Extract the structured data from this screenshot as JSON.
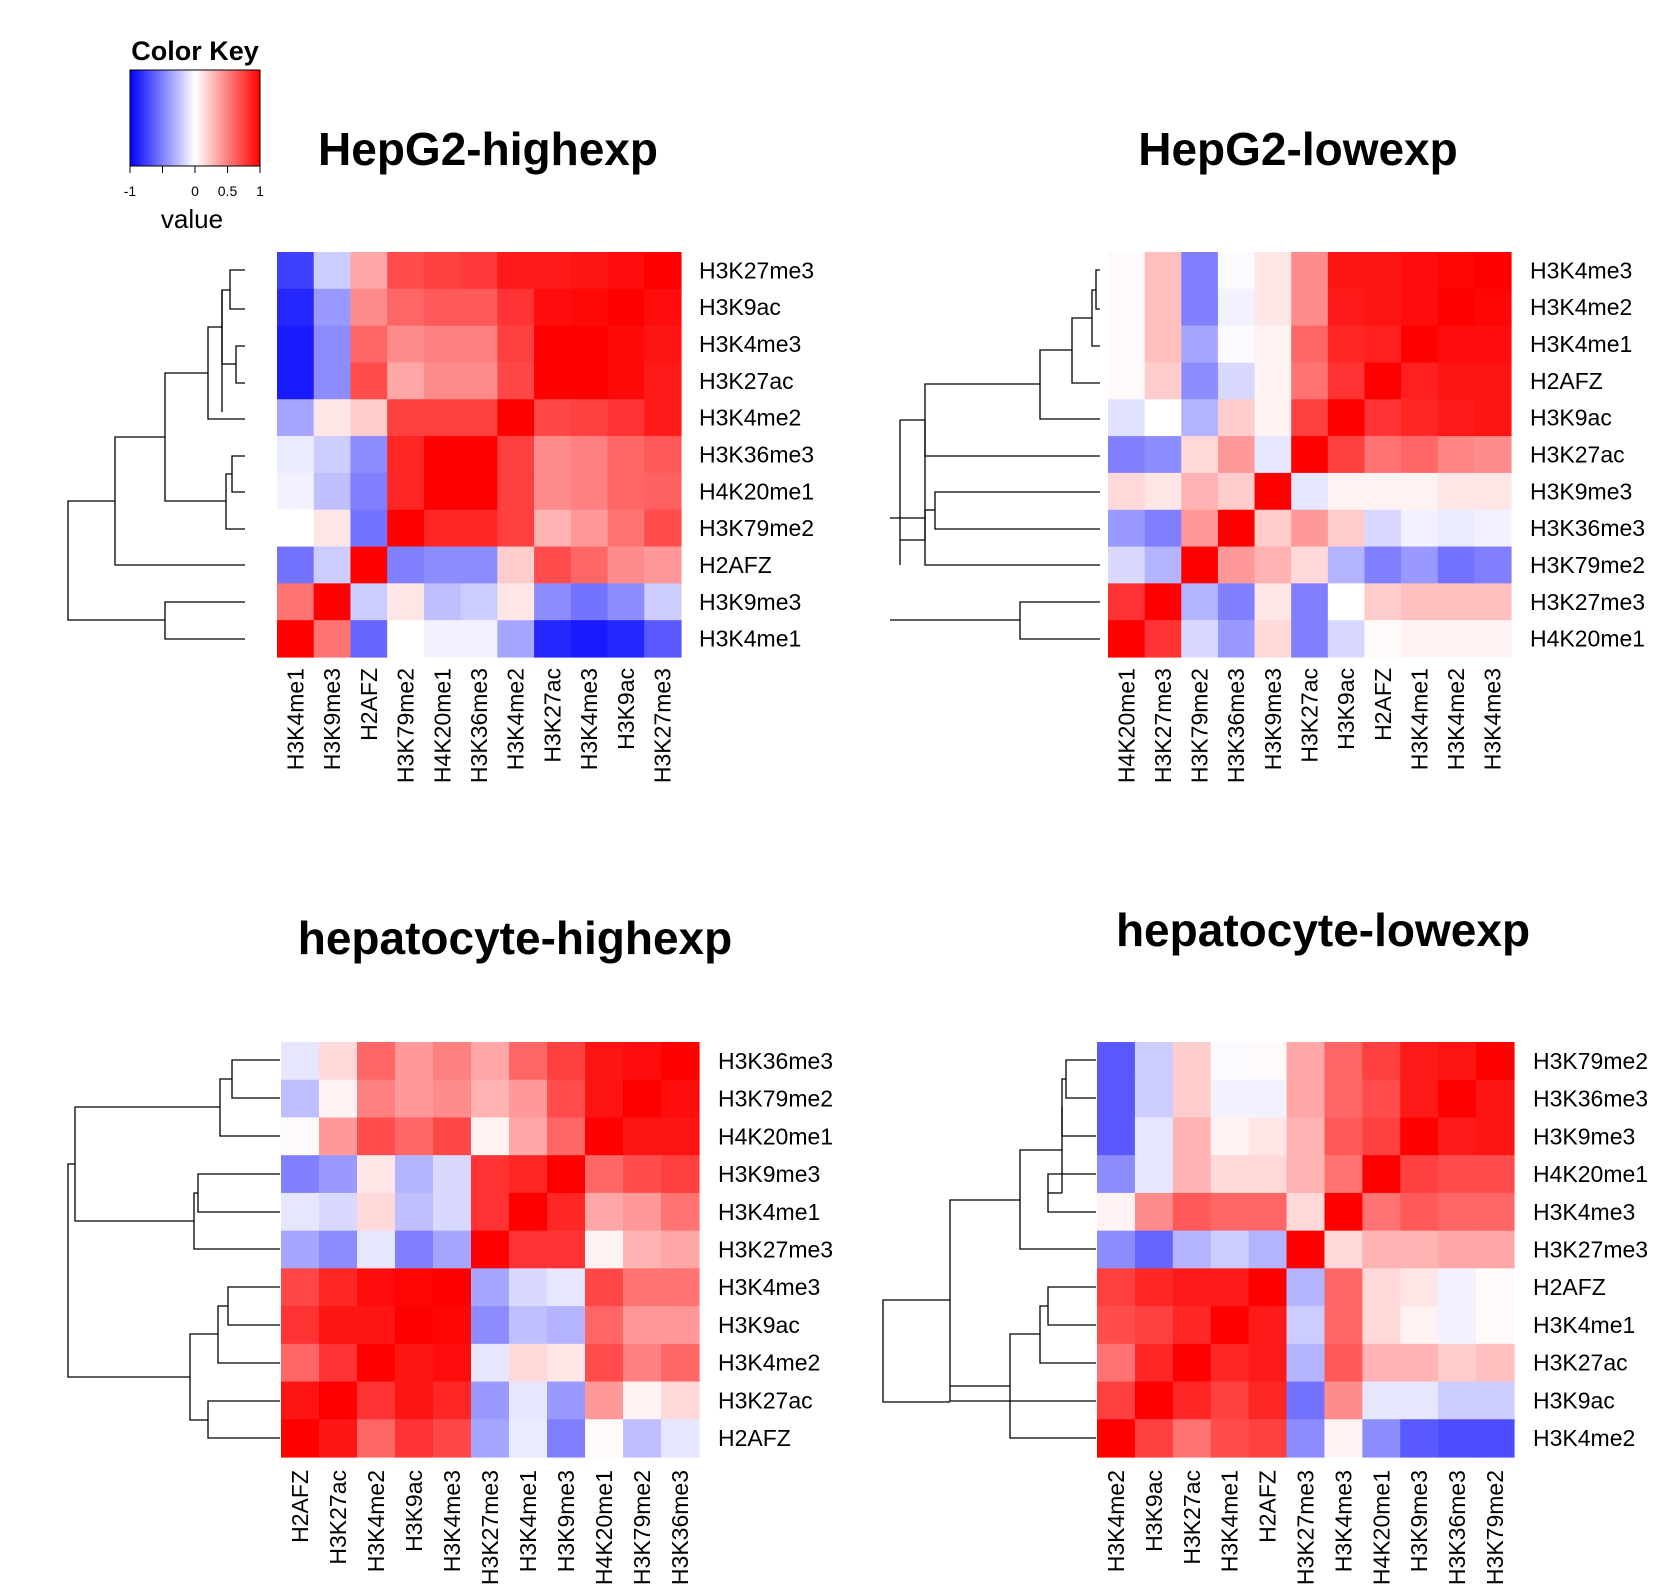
{
  "color_key": {
    "title": "Color Key",
    "xlabel": "value",
    "tick_labels": [
      "-1",
      "0",
      "0.5",
      "1"
    ],
    "tick_values": [
      -1,
      0,
      0.5,
      1
    ],
    "colors": {
      "low": "#0000ff",
      "mid": "#ffffff",
      "high": "#ff0000"
    }
  },
  "chart_data": [
    {
      "type": "heatmap",
      "title": "HepG2-highexp",
      "col_labels": [
        "H3K4me1",
        "H3K9me3",
        "H2AFZ",
        "H3K79me2",
        "H4K20me1",
        "H3K36me3",
        "H3K4me2",
        "H3K27ac",
        "H3K4me3",
        "H3K9ac",
        "H3K27me3"
      ],
      "row_labels": [
        "H3K27me3",
        "H3K9ac",
        "H3K4me3",
        "H3K27ac",
        "H3K4me2",
        "H3K36me3",
        "H4K20me1",
        "H3K79me2",
        "H2AFZ",
        "H3K9me3",
        "H3K4me1"
      ],
      "values": [
        [
          -0.75,
          -0.2,
          0.35,
          0.7,
          0.75,
          0.78,
          0.9,
          0.9,
          0.92,
          0.95,
          1
        ],
        [
          -0.85,
          -0.4,
          0.45,
          0.6,
          0.65,
          0.65,
          0.8,
          0.95,
          0.97,
          1,
          0.95
        ],
        [
          -0.9,
          -0.45,
          0.6,
          0.45,
          0.5,
          0.5,
          0.75,
          1,
          1,
          0.97,
          0.92
        ],
        [
          -0.9,
          -0.45,
          0.7,
          0.35,
          0.45,
          0.45,
          0.72,
          1,
          1,
          0.97,
          0.9
        ],
        [
          -0.35,
          0.1,
          0.2,
          0.75,
          0.75,
          0.75,
          1,
          0.72,
          0.75,
          0.8,
          0.9
        ],
        [
          -0.08,
          -0.2,
          -0.45,
          0.85,
          1,
          1,
          0.75,
          0.45,
          0.5,
          0.6,
          0.65
        ],
        [
          -0.05,
          -0.25,
          -0.5,
          0.85,
          1,
          1,
          0.75,
          0.45,
          0.5,
          0.6,
          0.62
        ],
        [
          0,
          0.1,
          -0.55,
          1,
          0.85,
          0.85,
          0.75,
          0.3,
          0.4,
          0.55,
          0.7
        ],
        [
          -0.55,
          -0.2,
          1,
          -0.5,
          -0.45,
          -0.45,
          0.2,
          0.7,
          0.6,
          0.45,
          0.4
        ],
        [
          0.55,
          1,
          -0.2,
          0.1,
          -0.25,
          -0.2,
          0.1,
          -0.45,
          -0.55,
          -0.45,
          -0.2
        ],
        [
          1,
          0.55,
          -0.6,
          0,
          -0.05,
          -0.05,
          -0.35,
          -0.85,
          -0.9,
          -0.85,
          -0.65
        ]
      ]
    },
    {
      "type": "heatmap",
      "title": "HepG2-lowexp",
      "col_labels": [
        "H4K20me1",
        "H3K27me3",
        "H3K79me2",
        "H3K36me3",
        "H3K9me3",
        "H3K27ac",
        "H3K9ac",
        "H2AFZ",
        "H3K4me1",
        "H3K4me2",
        "H3K4me3"
      ],
      "row_labels": [
        "H3K4me3",
        "H3K4me2",
        "H3K4me1",
        "H2AFZ",
        "H3K9ac",
        "H3K27ac",
        "H3K9me3",
        "H3K36me3",
        "H3K79me2",
        "H3K27me3",
        "H4K20me1"
      ],
      "values": [
        [
          0.02,
          0.25,
          -0.5,
          -0.02,
          0.1,
          0.45,
          0.92,
          0.92,
          0.95,
          0.98,
          1
        ],
        [
          0.02,
          0.25,
          -0.5,
          -0.05,
          0.1,
          0.45,
          0.9,
          0.92,
          0.95,
          1,
          0.98
        ],
        [
          0.02,
          0.25,
          -0.35,
          -0.02,
          0.05,
          0.6,
          0.85,
          0.88,
          1,
          0.95,
          0.95
        ],
        [
          0.02,
          0.2,
          -0.45,
          -0.15,
          0.05,
          0.55,
          0.8,
          1,
          0.88,
          0.92,
          0.92
        ],
        [
          -0.12,
          0,
          -0.3,
          0.2,
          0.05,
          0.75,
          1,
          0.8,
          0.85,
          0.9,
          0.92
        ],
        [
          -0.5,
          -0.45,
          0.15,
          0.4,
          -0.1,
          1,
          0.75,
          0.55,
          0.6,
          0.48,
          0.45
        ],
        [
          0.15,
          0.1,
          0.3,
          0.2,
          1,
          -0.1,
          0.05,
          0.05,
          0.05,
          0.1,
          0.1
        ],
        [
          -0.4,
          -0.5,
          0.4,
          1,
          0.2,
          0.4,
          0.2,
          -0.15,
          -0.05,
          -0.08,
          -0.05
        ],
        [
          -0.15,
          -0.3,
          1,
          0.4,
          0.3,
          0.15,
          -0.3,
          -0.5,
          -0.4,
          -0.55,
          -0.5
        ],
        [
          0.8,
          1,
          -0.3,
          -0.5,
          0.1,
          -0.5,
          0,
          0.2,
          0.25,
          0.25,
          0.25
        ],
        [
          1,
          0.8,
          -0.15,
          -0.4,
          0.15,
          -0.5,
          -0.15,
          0.02,
          0.05,
          0.05,
          0.05
        ]
      ]
    },
    {
      "type": "heatmap",
      "title": "hepatocyte-highexp",
      "col_labels": [
        "H2AFZ",
        "H3K27ac",
        "H3K4me2",
        "H3K9ac",
        "H3K4me3",
        "H3K27me3",
        "H3K4me1",
        "H3K9me3",
        "H4K20me1",
        "H3K79me2",
        "H3K36me3"
      ],
      "row_labels": [
        "H3K36me3",
        "H3K79me2",
        "H4K20me1",
        "H3K9me3",
        "H3K4me1",
        "H3K27me3",
        "H3K4me3",
        "H3K9ac",
        "H3K4me2",
        "H3K27ac",
        "H2AFZ"
      ],
      "values": [
        [
          -0.1,
          0.15,
          0.6,
          0.4,
          0.5,
          0.35,
          0.6,
          0.75,
          0.92,
          0.95,
          1
        ],
        [
          -0.25,
          0.05,
          0.5,
          0.4,
          0.45,
          0.3,
          0.4,
          0.7,
          0.92,
          1,
          0.95
        ],
        [
          0.02,
          0.4,
          0.7,
          0.6,
          0.72,
          0.05,
          0.35,
          0.6,
          1,
          0.92,
          0.92
        ],
        [
          -0.5,
          -0.4,
          0.1,
          -0.3,
          -0.15,
          0.8,
          0.85,
          1,
          0.6,
          0.7,
          0.75
        ],
        [
          -0.1,
          -0.15,
          0.15,
          -0.25,
          -0.15,
          0.8,
          1,
          0.85,
          0.35,
          0.4,
          0.55
        ],
        [
          -0.35,
          -0.45,
          -0.1,
          -0.5,
          -0.35,
          1,
          0.8,
          0.8,
          0.05,
          0.3,
          0.35
        ],
        [
          0.72,
          0.85,
          0.95,
          0.98,
          1,
          -0.35,
          -0.15,
          -0.1,
          0.72,
          0.55,
          0.55
        ],
        [
          0.8,
          0.92,
          0.92,
          1,
          0.98,
          -0.45,
          -0.25,
          -0.3,
          0.6,
          0.4,
          0.4
        ],
        [
          0.6,
          0.8,
          1,
          0.92,
          0.95,
          -0.1,
          0.15,
          0.1,
          0.7,
          0.5,
          0.6
        ],
        [
          0.92,
          1,
          0.8,
          0.92,
          0.85,
          -0.4,
          -0.1,
          -0.4,
          0.4,
          0.05,
          0.15
        ],
        [
          1,
          0.92,
          0.6,
          0.8,
          0.72,
          -0.35,
          -0.08,
          -0.5,
          0.02,
          -0.25,
          -0.1
        ]
      ]
    },
    {
      "type": "heatmap",
      "title": "hepatocyte-lowexp",
      "col_labels": [
        "H3K4me2",
        "H3K9ac",
        "H3K27ac",
        "H3K4me1",
        "H2AFZ",
        "H3K27me3",
        "H3K4me3",
        "H4K20me1",
        "H3K9me3",
        "H3K36me3",
        "H3K79me2"
      ],
      "row_labels": [
        "H3K79me2",
        "H3K36me3",
        "H3K9me3",
        "H4K20me1",
        "H3K4me3",
        "H3K27me3",
        "H2AFZ",
        "H3K4me1",
        "H3K27ac",
        "H3K9ac",
        "H3K4me2"
      ],
      "values": [
        [
          -0.65,
          -0.2,
          0.2,
          -0.02,
          0.02,
          0.35,
          0.6,
          0.75,
          0.9,
          0.92,
          1
        ],
        [
          -0.65,
          -0.2,
          0.2,
          -0.05,
          -0.05,
          0.35,
          0.6,
          0.7,
          0.9,
          1,
          0.92
        ],
        [
          -0.65,
          -0.1,
          0.3,
          0.05,
          0.1,
          0.3,
          0.65,
          0.75,
          1,
          0.9,
          0.92
        ],
        [
          -0.45,
          -0.1,
          0.3,
          0.15,
          0.15,
          0.3,
          0.55,
          1,
          0.75,
          0.7,
          0.7
        ],
        [
          0.05,
          0.45,
          0.65,
          0.6,
          0.6,
          0.15,
          1,
          0.55,
          0.65,
          0.6,
          0.6
        ],
        [
          -0.45,
          -0.6,
          -0.3,
          -0.2,
          -0.3,
          1,
          0.15,
          0.3,
          0.3,
          0.35,
          0.35
        ],
        [
          0.75,
          0.85,
          0.9,
          0.9,
          1,
          -0.3,
          0.6,
          0.15,
          0.1,
          -0.05,
          0.02
        ],
        [
          0.7,
          0.75,
          0.85,
          1,
          0.9,
          -0.2,
          0.6,
          0.15,
          0.05,
          -0.05,
          0.02
        ],
        [
          0.55,
          0.85,
          1,
          0.85,
          0.9,
          -0.3,
          0.65,
          0.3,
          0.3,
          0.2,
          0.25
        ],
        [
          0.75,
          1,
          0.85,
          0.75,
          0.85,
          -0.55,
          0.45,
          -0.1,
          -0.1,
          -0.2,
          -0.2
        ],
        [
          1,
          0.75,
          0.55,
          0.7,
          0.75,
          -0.45,
          0.05,
          -0.45,
          -0.65,
          -0.7,
          -0.7
        ]
      ]
    }
  ]
}
